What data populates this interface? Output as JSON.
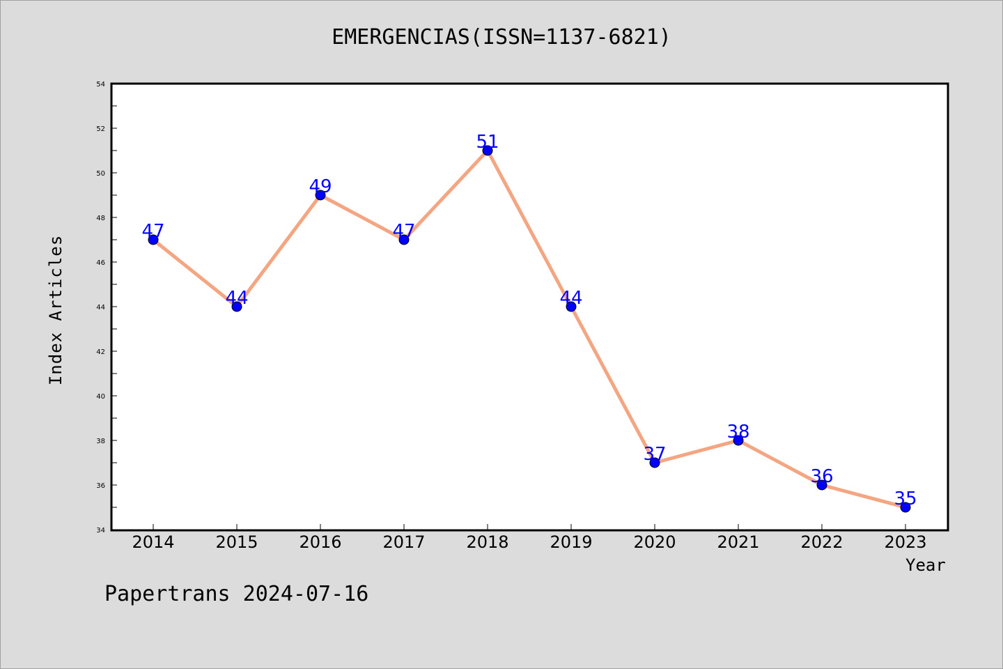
{
  "footer": "Papertrans 2024-07-16",
  "chart_data": {
    "type": "line",
    "title": "EMERGENCIAS(ISSN=1137-6821)",
    "xlabel": "Year",
    "ylabel": "Index Articles",
    "categories": [
      "2014",
      "2015",
      "2016",
      "2017",
      "2018",
      "2019",
      "2020",
      "2021",
      "2022",
      "2023"
    ],
    "values": [
      47,
      44,
      49,
      47,
      51,
      44,
      37,
      38,
      36,
      35
    ],
    "ylim": [
      34,
      54
    ],
    "yticks": [
      "34",
      "36",
      "38",
      "40",
      "42",
      "44",
      "46",
      "48",
      "50",
      "52",
      "54"
    ],
    "grid": false,
    "data_labels": true,
    "colors": {
      "line": "#f4a582",
      "marker": "#0000ff",
      "label": "#0000ff"
    }
  }
}
